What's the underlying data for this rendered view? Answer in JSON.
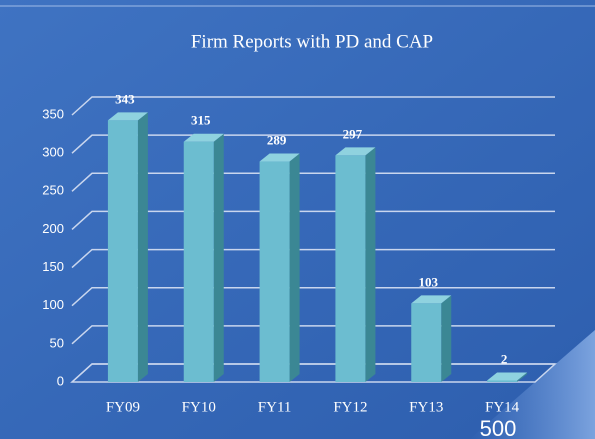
{
  "chart_data": {
    "type": "bar3d",
    "title": "Firm Reports with PD and CAP",
    "categories": [
      "FY09",
      "FY10",
      "FY11",
      "FY12",
      "FY13",
      "FY14"
    ],
    "values": [
      343,
      315,
      289,
      297,
      103,
      2
    ],
    "color": "#6cbdd0",
    "ylim": [
      0,
      350
    ],
    "yticks": [
      0,
      50,
      100,
      150,
      200,
      250,
      300,
      350
    ],
    "grid": true,
    "annotation": "500"
  }
}
